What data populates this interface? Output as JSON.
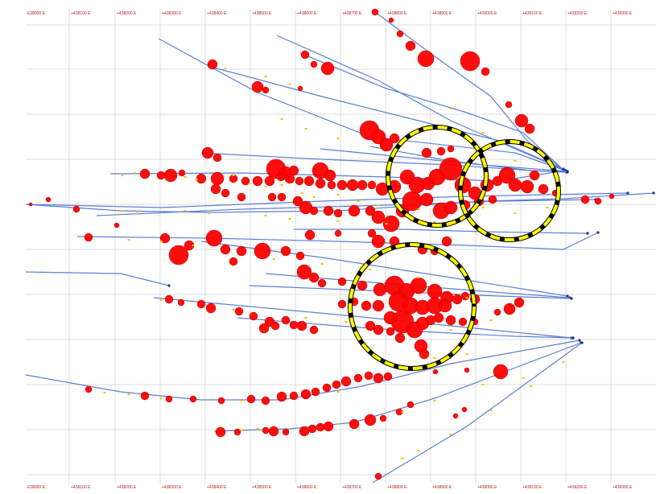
{
  "easting_labels": [
    "E38000 E",
    "+438100 E",
    "+438200 E",
    "+438300 E",
    "+438400 E",
    "+438500 E",
    "+438600 E",
    "+438700 E",
    "+438800 E",
    "+438900 E",
    "+439000 E",
    "+439100 E",
    "+439200 E",
    "+439300 E"
  ],
  "colors": {
    "grid": "#d0d0d0",
    "tick_text": "#b02020",
    "trace": "#5b7fd6",
    "intercept": "#ff0000",
    "intercept_edge": "#c00000",
    "minor_intercept": "#f2c200",
    "highlight_fill": "#ffff00",
    "highlight_dash": "#000000"
  },
  "map_type": "drillhole plan view with assay intercepts",
  "highlight_count": 3
}
